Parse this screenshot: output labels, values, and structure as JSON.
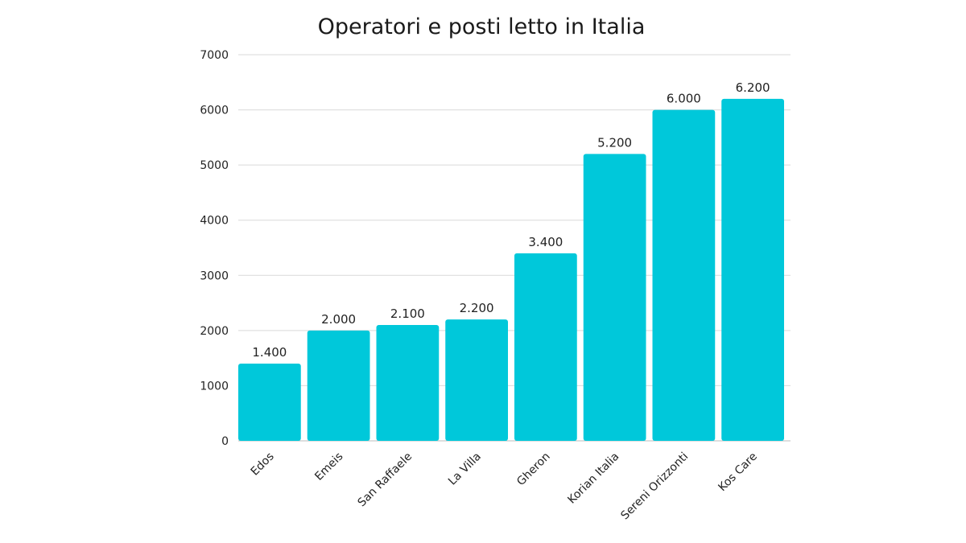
{
  "chart_data": {
    "type": "bar",
    "title": "Operatori e posti letto in Italia",
    "xlabel": "",
    "ylabel": "",
    "categories": [
      "Edos",
      "Emeis",
      "San Raffaele",
      "La Villa",
      "Gheron",
      "Korian Italia",
      "Sereni Orizzonti",
      "Kos Care"
    ],
    "values": [
      1400,
      2000,
      2100,
      2200,
      3400,
      5200,
      6000,
      6200
    ],
    "value_labels": [
      "1.400",
      "2.000",
      "2.100",
      "2.200",
      "3.400",
      "5.200",
      "6.000",
      "6.200"
    ],
    "ylim": [
      0,
      7000
    ],
    "yticks": [
      0,
      1000,
      2000,
      3000,
      4000,
      5000,
      6000,
      7000
    ],
    "ytick_labels": [
      "0",
      "1000",
      "2000",
      "3000",
      "4000",
      "5000",
      "6000",
      "7000"
    ],
    "grid": true,
    "legend": "none",
    "bar_color": "#00C8DA"
  }
}
